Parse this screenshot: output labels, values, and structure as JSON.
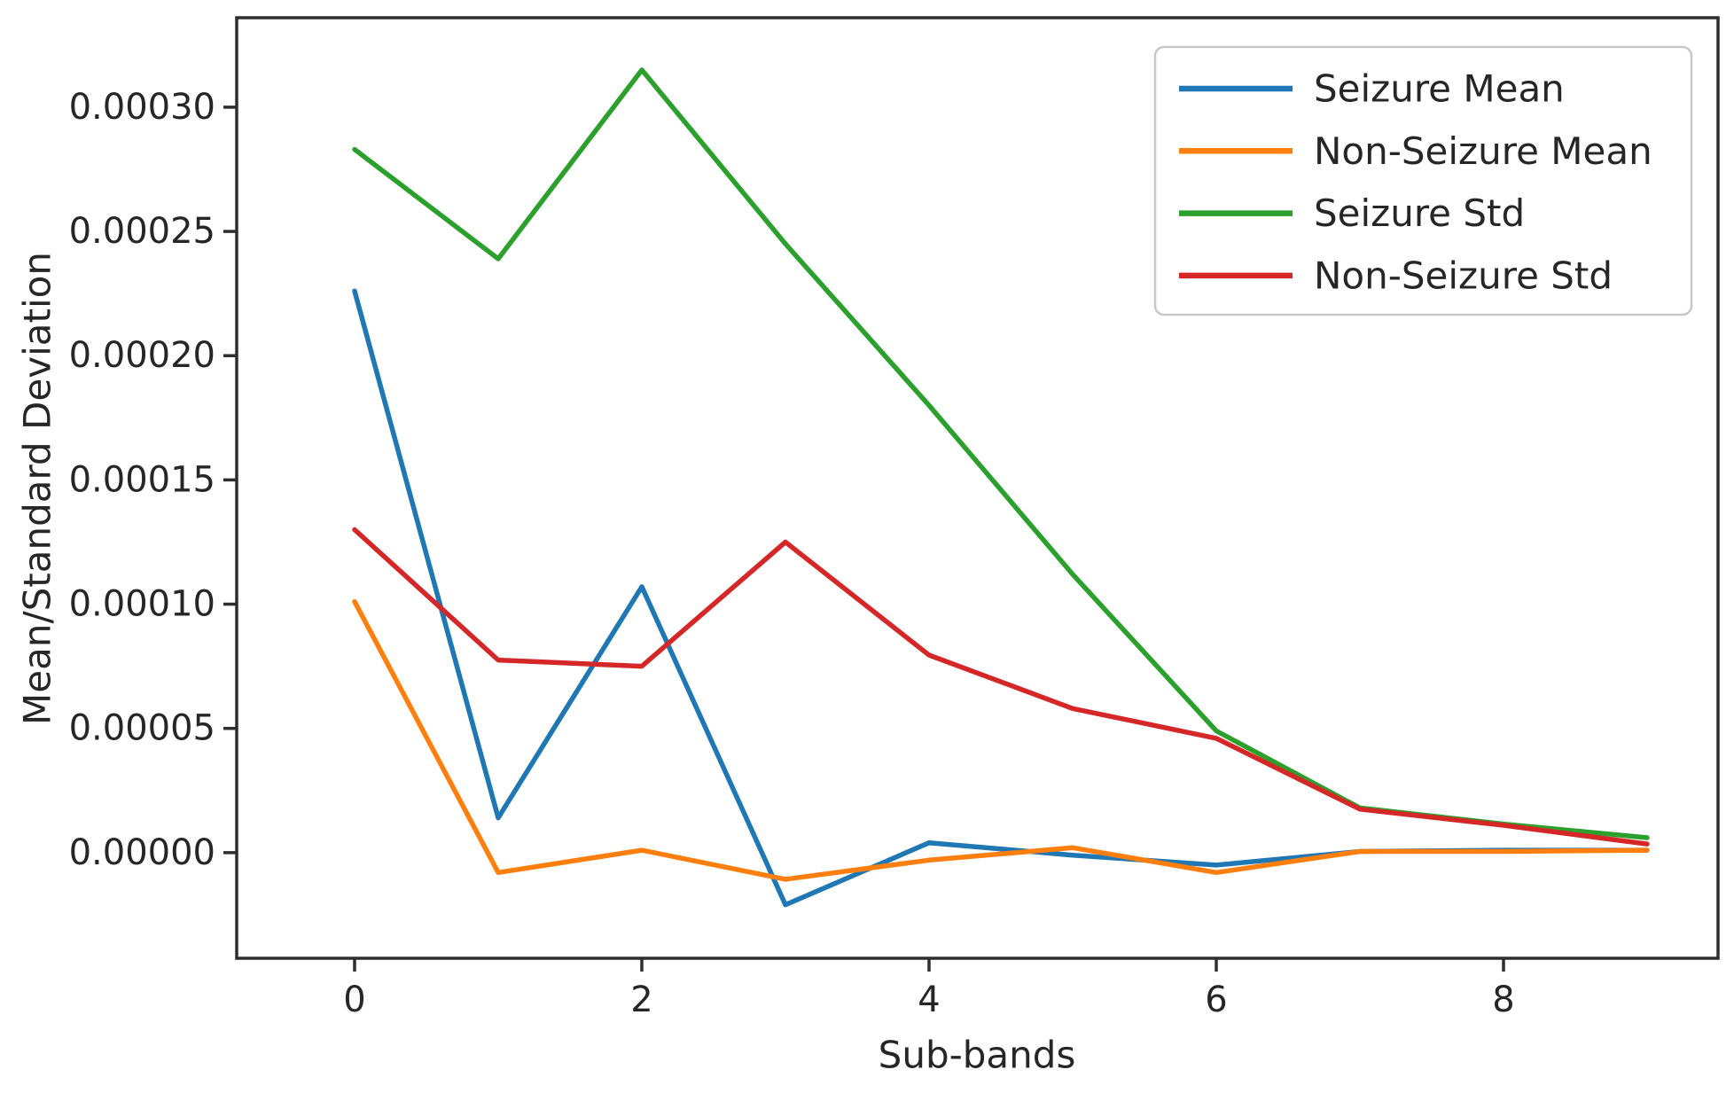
{
  "figure": {
    "background": "#ffffff",
    "spine_color": "#2e2e2e",
    "text_color": "#262626"
  },
  "chart_data": {
    "type": "line",
    "title": "",
    "xlabel": "Sub-bands",
    "ylabel": "Mean/Standard Deviation",
    "grid": false,
    "legend_position": "upper right",
    "xlim": [
      -0.8209,
      9.4938
    ],
    "ylim": [
      -4.25e-05,
      0.000336
    ],
    "x": [
      0,
      1,
      2,
      3,
      4,
      5,
      6,
      7,
      8,
      9
    ],
    "series": [
      {
        "name": "Seizure Mean",
        "color": "#1f77b4",
        "values": [
          0.000226,
          1.4e-05,
          0.000107,
          -2.1e-05,
          4e-06,
          -1e-06,
          -5e-06,
          5e-07,
          1e-06,
          1e-06
        ]
      },
      {
        "name": "Non-Seizure Mean",
        "color": "#ff7f0e",
        "values": [
          0.000101,
          -8e-06,
          1e-06,
          -1.07e-05,
          -3e-06,
          2e-06,
          -8e-06,
          5e-07,
          5e-07,
          1e-06
        ]
      },
      {
        "name": "Seizure Std",
        "color": "#2ca02c",
        "values": [
          0.000283,
          0.000239,
          0.000315,
          0.000245,
          0.00018,
          0.000112,
          4.9e-05,
          1.8e-05,
          1.15e-05,
          6e-06
        ]
      },
      {
        "name": "Non-Seizure Std",
        "color": "#d62728",
        "values": [
          0.00013,
          7.75e-05,
          7.5e-05,
          0.000125,
          7.95e-05,
          5.8e-05,
          4.6e-05,
          1.75e-05,
          1.1e-05,
          3.5e-06
        ]
      }
    ],
    "x_ticks": [
      {
        "value": 0,
        "label": "0"
      },
      {
        "value": 2,
        "label": "2"
      },
      {
        "value": 4,
        "label": "4"
      },
      {
        "value": 6,
        "label": "6"
      },
      {
        "value": 8,
        "label": "8"
      }
    ],
    "y_ticks": [
      {
        "value": 0.0,
        "label": "0.00000"
      },
      {
        "value": 5e-05,
        "label": "0.00005"
      },
      {
        "value": 0.0001,
        "label": "0.00010"
      },
      {
        "value": 0.00015,
        "label": "0.00015"
      },
      {
        "value": 0.0002,
        "label": "0.00020"
      },
      {
        "value": 0.00025,
        "label": "0.00025"
      },
      {
        "value": 0.0003,
        "label": "0.00030"
      }
    ]
  }
}
